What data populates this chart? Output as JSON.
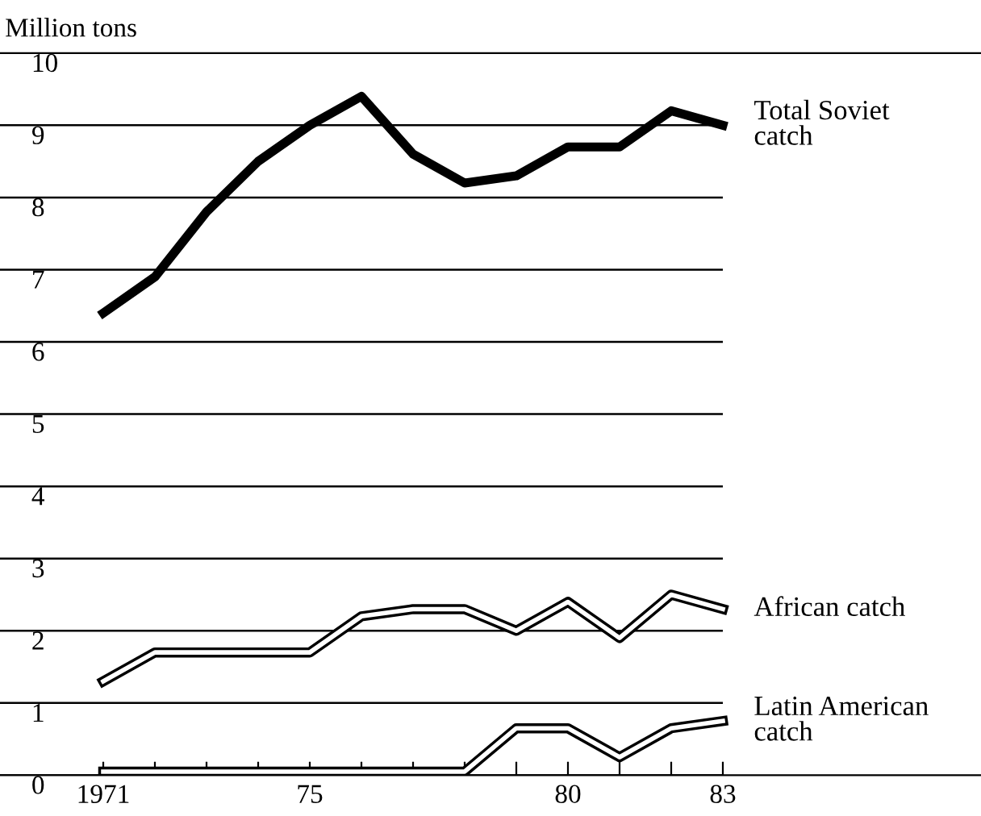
{
  "chart_data": {
    "type": "line",
    "ylabel": "Million tons",
    "x": [
      1971,
      1972,
      1973,
      1974,
      1975,
      1976,
      1977,
      1978,
      1979,
      1980,
      1981,
      1982,
      1983
    ],
    "series": [
      {
        "name": "Total Soviet catch",
        "color": "#000000",
        "values": [
          6.4,
          6.9,
          7.8,
          8.5,
          9.0,
          9.4,
          8.6,
          8.2,
          8.3,
          8.7,
          8.7,
          9.2,
          9.0
        ]
      },
      {
        "name": "African catch",
        "color": "#000000",
        "values": [
          1.3,
          1.7,
          1.7,
          1.7,
          1.7,
          2.2,
          2.3,
          2.3,
          2.0,
          2.4,
          1.9,
          2.5,
          2.3
        ]
      },
      {
        "name": "Latin American catch",
        "color": "#000000",
        "values": [
          0.05,
          0.05,
          0.05,
          0.05,
          0.05,
          0.05,
          0.05,
          0.05,
          0.65,
          0.65,
          0.25,
          0.65,
          0.75
        ]
      }
    ],
    "xlim": [
      1969,
      1988
    ],
    "ylim": [
      0,
      10
    ],
    "xticks": [
      {
        "value": 1971,
        "label": "1971"
      },
      {
        "value": 1972,
        "label": null
      },
      {
        "value": 1973,
        "label": null
      },
      {
        "value": 1974,
        "label": null
      },
      {
        "value": 1975,
        "label": "75"
      },
      {
        "value": 1976,
        "label": null
      },
      {
        "value": 1977,
        "label": null
      },
      {
        "value": 1978,
        "label": null
      },
      {
        "value": 1979,
        "label": null
      },
      {
        "value": 1980,
        "label": "80"
      },
      {
        "value": 1981,
        "label": null
      },
      {
        "value": 1982,
        "label": null
      },
      {
        "value": 1983,
        "label": "83"
      }
    ],
    "yticks": [
      0,
      1,
      2,
      3,
      4,
      5,
      6,
      7,
      8,
      9,
      10
    ],
    "grid": "y",
    "legend": false,
    "marker": "none",
    "line_style": "solid"
  }
}
